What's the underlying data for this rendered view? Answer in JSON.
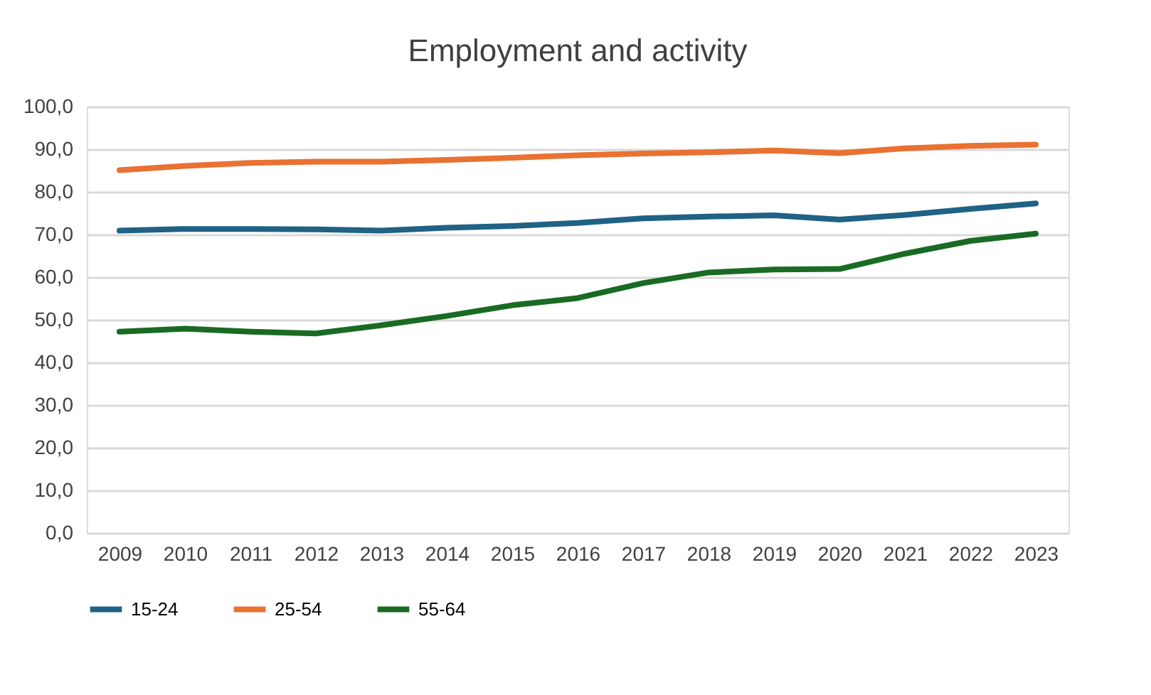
{
  "chart_data": {
    "type": "line",
    "title": "Employment and activity",
    "categories": [
      "2009",
      "2010",
      "2011",
      "2012",
      "2013",
      "2014",
      "2015",
      "2016",
      "2017",
      "2018",
      "2019",
      "2020",
      "2021",
      "2022",
      "2023"
    ],
    "series": [
      {
        "name": "15-24",
        "color": "#1f6285",
        "values": [
          70.9,
          71.3,
          71.3,
          71.2,
          70.9,
          71.6,
          72.0,
          72.7,
          73.8,
          74.2,
          74.5,
          73.5,
          74.6,
          76.0,
          77.3
        ]
      },
      {
        "name": "25-54",
        "color": "#e97132",
        "values": [
          85.1,
          86.1,
          86.8,
          87.1,
          87.1,
          87.5,
          88.0,
          88.6,
          89.0,
          89.3,
          89.7,
          89.1,
          90.2,
          90.8,
          91.1
        ]
      },
      {
        "name": "55-64",
        "color": "#196b24",
        "values": [
          47.2,
          47.9,
          47.2,
          46.8,
          48.7,
          50.9,
          53.4,
          55.1,
          58.6,
          61.1,
          61.8,
          61.9,
          65.5,
          68.5,
          70.2
        ]
      }
    ],
    "ylim": [
      0,
      100
    ],
    "yticks": [
      {
        "value": 0,
        "label": "0,0"
      },
      {
        "value": 10,
        "label": "10,0"
      },
      {
        "value": 20,
        "label": "20,0"
      },
      {
        "value": 30,
        "label": "30,0"
      },
      {
        "value": 40,
        "label": "40,0"
      },
      {
        "value": 50,
        "label": "50,0"
      },
      {
        "value": 60,
        "label": "60,0"
      },
      {
        "value": 70,
        "label": "70,0"
      },
      {
        "value": 80,
        "label": "80,0"
      },
      {
        "value": 90,
        "label": "90,0"
      },
      {
        "value": 100,
        "label": "100,0"
      }
    ],
    "grid": "y",
    "legend": "bottom",
    "marker": "none",
    "line_style": "solid"
  }
}
